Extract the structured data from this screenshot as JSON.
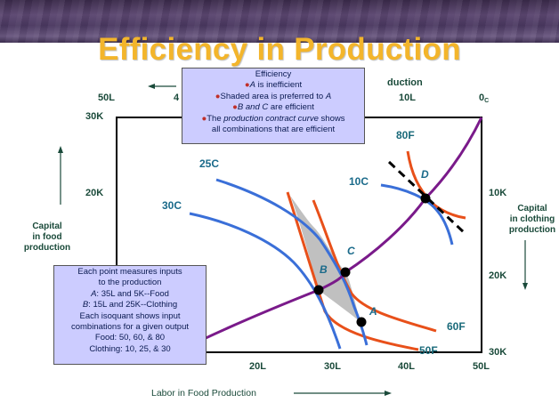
{
  "title": "Efficiency in Production",
  "top_axis": {
    "label_visible": "duction",
    "ticks": [
      "50L",
      "4",
      "10L"
    ],
    "origin": "0",
    "origin_sub": "C"
  },
  "left_axis_ticks": [
    "30K",
    "20K"
  ],
  "right_axis_ticks": [
    "10K",
    "20K",
    "30K"
  ],
  "bottom_axis_ticks": [
    "20L",
    "30L",
    "40L",
    "50L"
  ],
  "bottom_axis_label": "Labor in Food Production",
  "left_side_label": [
    "Capital",
    "in food",
    "production"
  ],
  "right_side_label": [
    "Capital",
    "in clothing",
    "production"
  ],
  "food_curves": [
    "80F",
    "60F",
    "50F"
  ],
  "clothing_curves": [
    "25C",
    "30C",
    "10C"
  ],
  "points": [
    "A",
    "B",
    "C",
    "D"
  ],
  "efficiency_box": {
    "heading": "Efficiency",
    "items": [
      {
        "italic": "A",
        "rest": " is inefficient"
      },
      {
        "rest": "Shaded area is preferred to ",
        "italic_end": "A"
      },
      {
        "italic": "B and C",
        "rest": " are efficient"
      },
      {
        "rest": "The ",
        "italic_mid": "production contract curve",
        "rest2": " shows"
      }
    ],
    "last_line": "all combinations that are efficient"
  },
  "info_box": {
    "lines": [
      "Each point measures inputs",
      "to the production",
      "35L and 5K--Food",
      "15L and 25K--Clothing",
      "Each isoquant shows input",
      "combinations for a given output",
      "Food: 50, 60, & 80",
      "Clothing: 10, 25, & 30"
    ],
    "line3_prefix": "A",
    "line4_prefix": "B"
  },
  "colors": {
    "title": "#f3b52b",
    "food_isoquant": "#e8501a",
    "clothing_isoquant": "#3a6fd8",
    "contract_curve": "#7a1a8a",
    "shaded": "#c0c0c0",
    "box_fill": "#ccccff"
  }
}
